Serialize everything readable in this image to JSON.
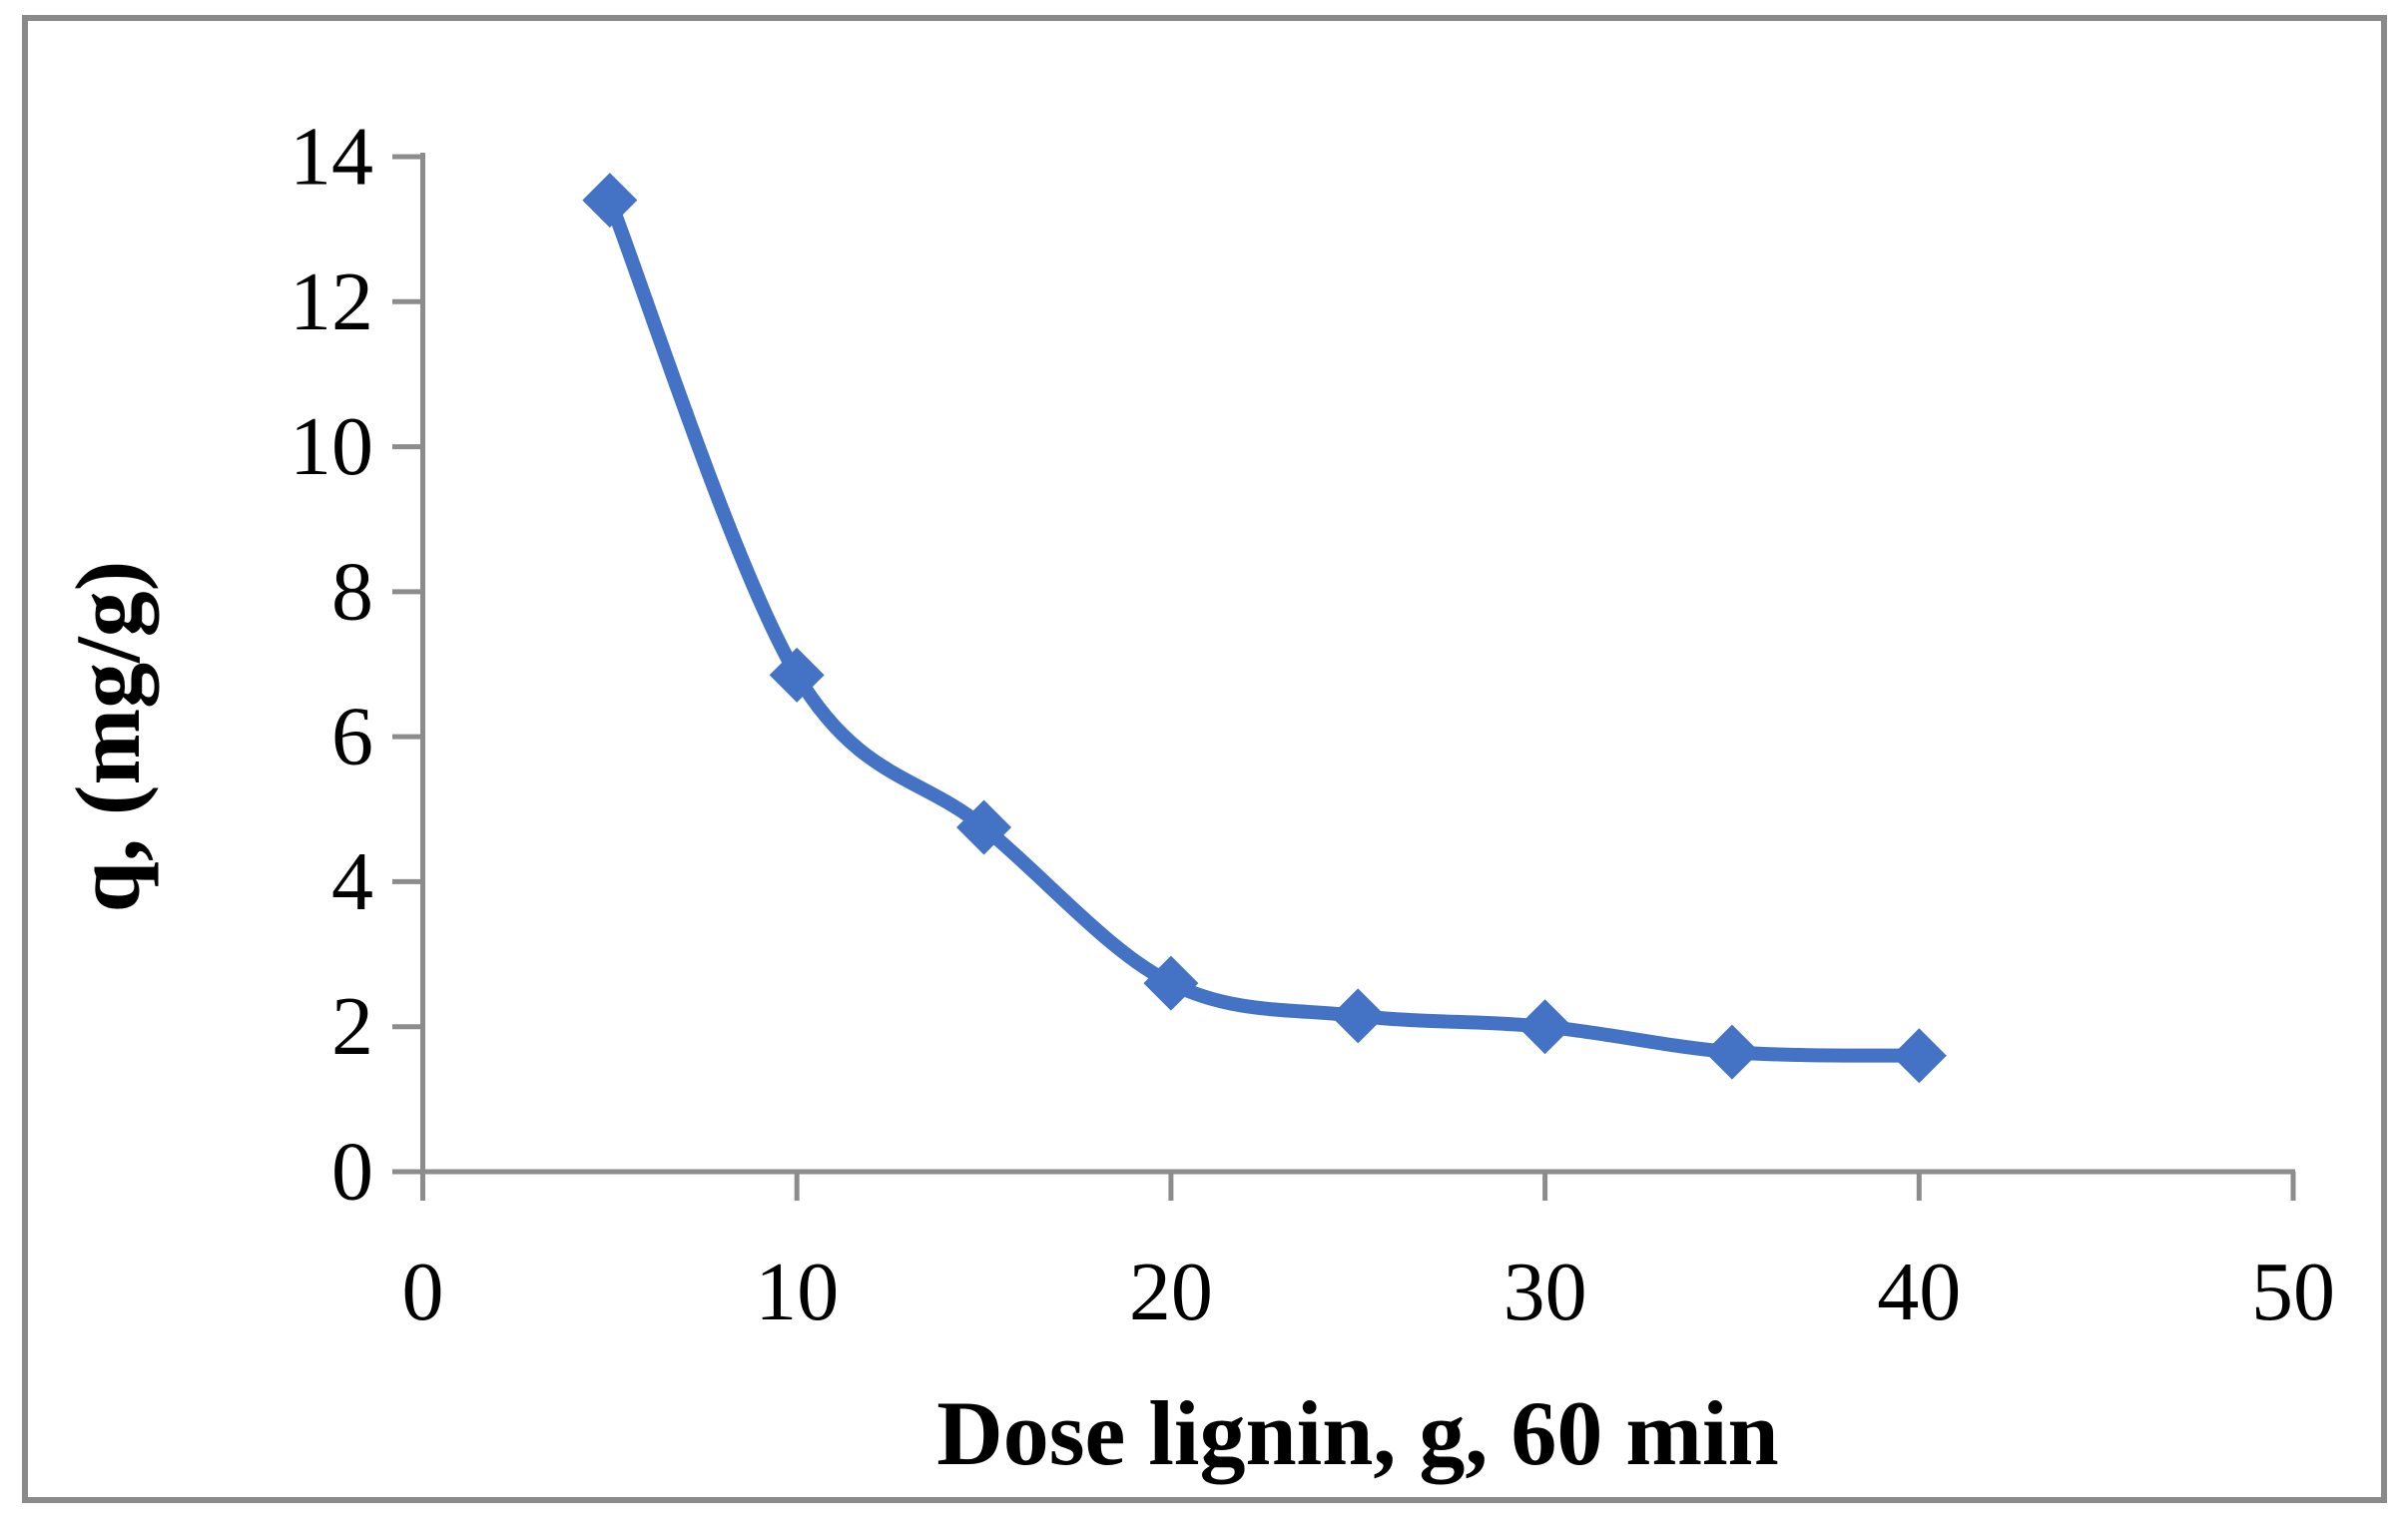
{
  "figure": {
    "background": "#FFFFFF",
    "border_color": "#8A8A8A"
  },
  "chart_data": {
    "type": "line",
    "title": "",
    "xlabel": "Dose lignin, g, 60 min",
    "ylabel": "q, (mg/g)",
    "x": [
      5,
      10,
      15,
      20,
      25,
      30,
      35,
      40
    ],
    "series": [
      {
        "name": "q",
        "values": [
          13.4,
          6.85,
          4.75,
          2.6,
          2.15,
          2.0,
          1.65,
          1.6
        ]
      }
    ],
    "xlim": [
      0,
      50
    ],
    "ylim": [
      0,
      14
    ],
    "xticks": [
      0,
      10,
      20,
      30,
      40,
      50
    ],
    "yticks": [
      0,
      2,
      4,
      6,
      8,
      10,
      12,
      14
    ],
    "grid": false,
    "legend": "none",
    "marker": "diamond",
    "line_smoothed": true,
    "colors": {
      "series": "#4472C4",
      "axis": "#8C8C8C",
      "text": "#000000"
    }
  }
}
